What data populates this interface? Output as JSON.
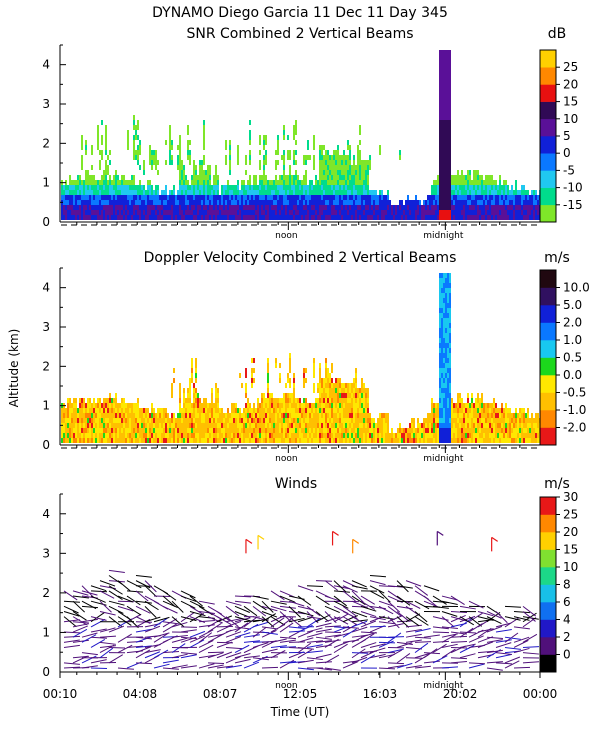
{
  "figure": {
    "title_line1": "DYNAMO Diego Garcia  11 Dec 11 Day 345",
    "ylabel": "Altitude (km)",
    "xlabel": "Time (UT)"
  },
  "chart_data": [
    {
      "type": "heatmap",
      "title": "SNR Combined 2 Vertical Beams",
      "ylim": [
        0,
        4.5
      ],
      "yticks": [
        "0",
        "1",
        "2",
        "3",
        "4"
      ],
      "xlim_hours": [
        0.1667,
        24
      ],
      "marker_labels": [
        "noon",
        "midnight"
      ],
      "colorbar": {
        "unit": "dB",
        "ticks": [
          "-15",
          "-10",
          "-5",
          "0",
          "5",
          "10",
          "15",
          "20",
          "25"
        ],
        "colors": [
          "#7fe629",
          "#00dc8c",
          "#20c8f0",
          "#0a78ff",
          "#1020d8",
          "#5a1098",
          "#300a55",
          "#e81010",
          "#ff8800",
          "#ffd000"
        ]
      },
      "description": "SNR by altitude and time; strongest returns below 0.8 km, narrow tall plume near 19:10 UT reaching ~4.5 km"
    },
    {
      "type": "heatmap",
      "title": "Doppler Velocity Combined 2 Vertical Beams",
      "ylim": [
        0,
        4.5
      ],
      "yticks": [
        "0",
        "1",
        "2",
        "3",
        "4"
      ],
      "xlim_hours": [
        0.1667,
        24
      ],
      "marker_labels": [
        "noon",
        "midnight"
      ],
      "colorbar": {
        "unit": "m/s",
        "ticks": [
          "-2.0",
          "-1.0",
          "-0.5",
          "0.0",
          "0.5",
          "1.0",
          "2.0",
          "5.0",
          "10.0"
        ],
        "colors": [
          "#e81818",
          "#ff8800",
          "#ffc000",
          "#ffe800",
          "#1cd81c",
          "#18c8f0",
          "#0a78ff",
          "#1020d8",
          "#301060",
          "#200810"
        ]
      },
      "description": "Vertical velocity mostly -0.5 to 0.5 m/s below 1 km; strong updraft column near 19:10 UT"
    },
    {
      "type": "scatter",
      "title": "Winds",
      "ylim": [
        0,
        4.5
      ],
      "yticks": [
        "0",
        "1",
        "2",
        "3",
        "4"
      ],
      "xticks": [
        "00:10",
        "04:08",
        "08:07",
        "12:05",
        "16:03",
        "20:02",
        "00:00"
      ],
      "xtick_hours": [
        0.1667,
        4.1333,
        8.1167,
        12.0833,
        16.05,
        20.0333,
        24
      ],
      "marker_labels": [
        "noon",
        "midnight"
      ],
      "colorbar": {
        "unit": "m/s",
        "ticks": [
          "0",
          "2",
          "4",
          "6",
          "8",
          "10",
          "15",
          "20",
          "25",
          "30"
        ],
        "colors": [
          "#000000",
          "#50107a",
          "#2018c8",
          "#1070f0",
          "#18c0e8",
          "#1cd888",
          "#80e030",
          "#ffd000",
          "#ff8800",
          "#e81818"
        ]
      },
      "description": "Wind barbs; dense low-level winds 2-6 m/s below 2 km, sparse stronger barbs near 3 km"
    }
  ]
}
